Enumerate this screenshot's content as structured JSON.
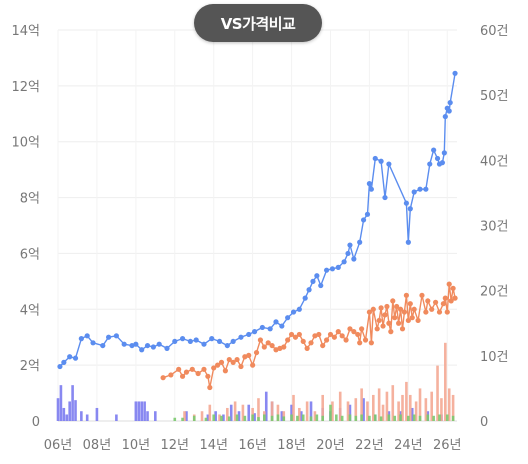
{
  "compare_button": {
    "label": "VS가격비교"
  },
  "chart_data": {
    "type": "line",
    "x_axis": {
      "ticks": [
        "06년",
        "08년",
        "10년",
        "12년",
        "14년",
        "16년",
        "18년",
        "20년",
        "22년",
        "24년",
        "26년"
      ],
      "range": [
        2006,
        2026.5
      ]
    },
    "y_left": {
      "ticks": [
        "0",
        "2억",
        "4억",
        "6억",
        "8억",
        "10억",
        "12억",
        "14억"
      ],
      "range": [
        0,
        14
      ]
    },
    "y_right": {
      "ticks": [
        "0",
        "10건",
        "20건",
        "30건",
        "40건",
        "50건",
        "60건"
      ],
      "range": [
        0,
        60
      ]
    },
    "grid": true,
    "colors": {
      "blue_line": "#5b8def",
      "orange_line": "#f08a5d",
      "blue_bars": "#7b7bef",
      "salmon_bars": "#f4a894",
      "green_bars": "#7bc96f"
    },
    "series": [
      {
        "kind": "line",
        "color": "#5b8def",
        "axis": "left",
        "points": [
          [
            2006.1,
            1.95
          ],
          [
            2006.3,
            2.1
          ],
          [
            2006.6,
            2.3
          ],
          [
            2006.9,
            2.25
          ],
          [
            2007.2,
            2.95
          ],
          [
            2007.5,
            3.05
          ],
          [
            2007.8,
            2.8
          ],
          [
            2008.3,
            2.7
          ],
          [
            2008.6,
            3.0
          ],
          [
            2009.0,
            3.05
          ],
          [
            2009.4,
            2.75
          ],
          [
            2009.8,
            2.7
          ],
          [
            2010.0,
            2.75
          ],
          [
            2010.3,
            2.55
          ],
          [
            2010.6,
            2.7
          ],
          [
            2010.9,
            2.65
          ],
          [
            2011.2,
            2.75
          ],
          [
            2011.6,
            2.6
          ],
          [
            2012.0,
            2.85
          ],
          [
            2012.4,
            2.95
          ],
          [
            2012.8,
            2.85
          ],
          [
            2013.1,
            2.9
          ],
          [
            2013.5,
            2.75
          ],
          [
            2013.9,
            2.95
          ],
          [
            2014.3,
            2.85
          ],
          [
            2014.7,
            2.7
          ],
          [
            2015.0,
            2.85
          ],
          [
            2015.4,
            3.0
          ],
          [
            2015.8,
            3.1
          ],
          [
            2016.1,
            3.2
          ],
          [
            2016.5,
            3.35
          ],
          [
            2016.9,
            3.3
          ],
          [
            2017.2,
            3.55
          ],
          [
            2017.5,
            3.4
          ],
          [
            2017.8,
            3.7
          ],
          [
            2018.1,
            3.9
          ],
          [
            2018.4,
            4.0
          ],
          [
            2018.7,
            4.4
          ],
          [
            2018.9,
            4.7
          ],
          [
            2019.1,
            5.0
          ],
          [
            2019.3,
            5.2
          ],
          [
            2019.5,
            4.85
          ],
          [
            2019.8,
            5.4
          ],
          [
            2020.1,
            5.45
          ],
          [
            2020.4,
            5.5
          ],
          [
            2020.7,
            5.7
          ],
          [
            2020.9,
            6.0
          ],
          [
            2021.0,
            6.3
          ],
          [
            2021.2,
            5.8
          ],
          [
            2021.5,
            6.4
          ],
          [
            2021.7,
            7.2
          ],
          [
            2021.9,
            7.4
          ],
          [
            2022.0,
            8.5
          ],
          [
            2022.1,
            8.3
          ],
          [
            2022.3,
            9.4
          ],
          [
            2022.6,
            9.3
          ],
          [
            2022.8,
            8.0
          ],
          [
            2023.0,
            9.2
          ],
          [
            2023.9,
            7.8
          ],
          [
            2024.0,
            6.4
          ],
          [
            2024.1,
            7.6
          ],
          [
            2024.3,
            8.2
          ],
          [
            2024.6,
            8.3
          ],
          [
            2024.9,
            8.3
          ],
          [
            2025.1,
            9.2
          ],
          [
            2025.3,
            9.7
          ],
          [
            2025.5,
            9.4
          ],
          [
            2025.6,
            9.2
          ],
          [
            2025.75,
            9.25
          ],
          [
            2025.85,
            9.6
          ],
          [
            2025.9,
            10.9
          ],
          [
            2026.0,
            11.2
          ],
          [
            2026.1,
            11.1
          ],
          [
            2026.15,
            11.4
          ],
          [
            2026.4,
            12.45
          ]
        ]
      },
      {
        "kind": "line",
        "color": "#f08a5d",
        "axis": "left",
        "points": [
          [
            2011.4,
            1.55
          ],
          [
            2011.8,
            1.65
          ],
          [
            2012.2,
            1.85
          ],
          [
            2012.4,
            1.6
          ],
          [
            2012.6,
            1.75
          ],
          [
            2012.9,
            1.85
          ],
          [
            2013.2,
            1.7
          ],
          [
            2013.5,
            1.85
          ],
          [
            2013.7,
            1.6
          ],
          [
            2013.8,
            1.2
          ],
          [
            2014.0,
            1.9
          ],
          [
            2014.2,
            2.0
          ],
          [
            2014.4,
            2.1
          ],
          [
            2014.6,
            1.8
          ],
          [
            2014.8,
            2.2
          ],
          [
            2015.0,
            2.1
          ],
          [
            2015.2,
            2.2
          ],
          [
            2015.4,
            1.95
          ],
          [
            2015.6,
            2.3
          ],
          [
            2015.8,
            2.35
          ],
          [
            2016.0,
            2.0
          ],
          [
            2016.2,
            2.45
          ],
          [
            2016.4,
            2.9
          ],
          [
            2016.6,
            2.65
          ],
          [
            2016.8,
            2.8
          ],
          [
            2017.0,
            2.7
          ],
          [
            2017.2,
            2.55
          ],
          [
            2017.4,
            2.6
          ],
          [
            2017.6,
            2.65
          ],
          [
            2017.8,
            2.9
          ],
          [
            2018.0,
            3.1
          ],
          [
            2018.2,
            3.0
          ],
          [
            2018.4,
            3.1
          ],
          [
            2018.6,
            2.85
          ],
          [
            2018.8,
            2.6
          ],
          [
            2019.0,
            2.8
          ],
          [
            2019.2,
            3.05
          ],
          [
            2019.4,
            3.1
          ],
          [
            2019.6,
            2.7
          ],
          [
            2019.8,
            2.9
          ],
          [
            2020.0,
            3.1
          ],
          [
            2020.2,
            3.0
          ],
          [
            2020.4,
            3.2
          ],
          [
            2020.6,
            3.05
          ],
          [
            2020.8,
            2.9
          ],
          [
            2021.0,
            3.3
          ],
          [
            2021.2,
            3.2
          ],
          [
            2021.4,
            3.1
          ],
          [
            2021.5,
            2.8
          ],
          [
            2021.6,
            3.3
          ],
          [
            2021.8,
            2.9
          ],
          [
            2022.0,
            3.9
          ],
          [
            2022.1,
            2.8
          ],
          [
            2022.2,
            4.0
          ],
          [
            2022.4,
            3.3
          ],
          [
            2022.5,
            3.6
          ],
          [
            2022.6,
            4.05
          ],
          [
            2022.7,
            3.4
          ],
          [
            2022.8,
            3.8
          ],
          [
            2022.9,
            4.1
          ],
          [
            2023.0,
            3.5
          ],
          [
            2023.1,
            3.2
          ],
          [
            2023.2,
            4.3
          ],
          [
            2023.3,
            3.7
          ],
          [
            2023.4,
            4.1
          ],
          [
            2023.5,
            3.5
          ],
          [
            2023.6,
            4.0
          ],
          [
            2023.7,
            3.3
          ],
          [
            2023.8,
            3.9
          ],
          [
            2023.9,
            4.5
          ],
          [
            2024.0,
            3.6
          ],
          [
            2024.1,
            4.2
          ],
          [
            2024.2,
            3.7
          ],
          [
            2024.3,
            4.0
          ],
          [
            2024.5,
            3.6
          ],
          [
            2024.7,
            4.5
          ],
          [
            2024.9,
            3.9
          ],
          [
            2025.0,
            4.3
          ],
          [
            2025.2,
            4.0
          ],
          [
            2025.4,
            4.25
          ],
          [
            2025.6,
            3.9
          ],
          [
            2025.8,
            4.2
          ],
          [
            2025.9,
            4.4
          ],
          [
            2026.0,
            3.9
          ],
          [
            2026.1,
            4.9
          ],
          [
            2026.2,
            4.3
          ],
          [
            2026.3,
            4.75
          ],
          [
            2026.4,
            4.4
          ]
        ]
      }
    ],
    "bar_series": [
      {
        "kind": "bars",
        "color": "#7b7bef",
        "axis": "right",
        "bars": [
          [
            2006.0,
            3.5
          ],
          [
            2006.15,
            5.5
          ],
          [
            2006.3,
            2.0
          ],
          [
            2006.45,
            1.0
          ],
          [
            2006.6,
            3.0
          ],
          [
            2006.75,
            5.5
          ],
          [
            2006.9,
            3.2
          ],
          [
            2007.2,
            1.5
          ],
          [
            2007.5,
            1.0
          ],
          [
            2008.0,
            2.0
          ],
          [
            2009.0,
            1.0
          ],
          [
            2010.0,
            3.0
          ],
          [
            2010.15,
            3.0
          ],
          [
            2010.3,
            3.0
          ],
          [
            2010.45,
            3.0
          ],
          [
            2010.6,
            1.5
          ],
          [
            2011.0,
            1.5
          ],
          [
            2012.6,
            1.5
          ],
          [
            2013.7,
            1.0
          ],
          [
            2014.1,
            1.5
          ],
          [
            2014.5,
            1.0
          ],
          [
            2014.9,
            2.5
          ],
          [
            2015.3,
            1.5
          ],
          [
            2015.8,
            2.5
          ],
          [
            2016.1,
            1.2
          ],
          [
            2016.7,
            4.5
          ],
          [
            2017.0,
            3.0
          ],
          [
            2017.5,
            1.5
          ],
          [
            2018.0,
            2.5
          ],
          [
            2018.5,
            1.5
          ],
          [
            2019.0,
            3.0
          ],
          [
            2019.6,
            2.0
          ],
          [
            2020.0,
            1.5
          ],
          [
            2020.5,
            2.0
          ],
          [
            2021.0,
            2.5
          ],
          [
            2021.7,
            3.5
          ],
          [
            2022.3,
            1.0
          ],
          [
            2023.0,
            1.5
          ],
          [
            2023.6,
            1.5
          ],
          [
            2024.2,
            2.0
          ],
          [
            2025.0,
            1.5
          ],
          [
            2025.7,
            1.0
          ]
        ]
      },
      {
        "kind": "bars",
        "color": "#f4a894",
        "axis": "right",
        "bars": [
          [
            2012.5,
            1.5
          ],
          [
            2013.0,
            1.0
          ],
          [
            2013.4,
            1.5
          ],
          [
            2013.8,
            2.5
          ],
          [
            2014.3,
            1.0
          ],
          [
            2014.7,
            2.0
          ],
          [
            2015.1,
            3.0
          ],
          [
            2015.5,
            2.5
          ],
          [
            2016.0,
            2.0
          ],
          [
            2016.3,
            3.5
          ],
          [
            2016.6,
            1.5
          ],
          [
            2017.0,
            3.0
          ],
          [
            2017.3,
            2.5
          ],
          [
            2017.6,
            1.5
          ],
          [
            2018.1,
            4.0
          ],
          [
            2018.4,
            2.0
          ],
          [
            2018.8,
            3.0
          ],
          [
            2019.2,
            1.5
          ],
          [
            2019.6,
            4.0
          ],
          [
            2020.1,
            3.0
          ],
          [
            2020.5,
            4.5
          ],
          [
            2020.9,
            3.0
          ],
          [
            2021.3,
            3.5
          ],
          [
            2021.6,
            5.0
          ],
          [
            2021.9,
            3.0
          ],
          [
            2022.2,
            4.0
          ],
          [
            2022.5,
            5.0
          ],
          [
            2022.7,
            2.5
          ],
          [
            2022.9,
            4.5
          ],
          [
            2023.2,
            5.5
          ],
          [
            2023.5,
            3.0
          ],
          [
            2023.7,
            4.0
          ],
          [
            2023.9,
            6.0
          ],
          [
            2024.1,
            4.0
          ],
          [
            2024.4,
            3.0
          ],
          [
            2024.6,
            5.0
          ],
          [
            2024.9,
            3.5
          ],
          [
            2025.2,
            4.5
          ],
          [
            2025.5,
            8.5
          ],
          [
            2025.7,
            3.5
          ],
          [
            2025.9,
            12.0
          ],
          [
            2026.1,
            5.0
          ],
          [
            2026.3,
            4.0
          ]
        ]
      },
      {
        "kind": "bars",
        "color": "#7bc96f",
        "axis": "right",
        "bars": [
          [
            2012.0,
            0.5
          ],
          [
            2012.4,
            0.5
          ],
          [
            2013.0,
            0.8
          ],
          [
            2013.6,
            0.5
          ],
          [
            2014.0,
            1.0
          ],
          [
            2014.4,
            0.8
          ],
          [
            2014.8,
            0.7
          ],
          [
            2015.2,
            1.0
          ],
          [
            2015.6,
            0.8
          ],
          [
            2016.0,
            1.0
          ],
          [
            2016.3,
            0.6
          ],
          [
            2016.6,
            1.0
          ],
          [
            2017.0,
            0.8
          ],
          [
            2017.3,
            1.0
          ],
          [
            2017.6,
            0.7
          ],
          [
            2018.0,
            1.0
          ],
          [
            2018.3,
            0.8
          ],
          [
            2018.6,
            1.0
          ],
          [
            2019.0,
            0.7
          ],
          [
            2019.3,
            1.0
          ],
          [
            2019.6,
            0.8
          ],
          [
            2020.0,
            2.5
          ],
          [
            2020.3,
            1.0
          ],
          [
            2020.6,
            0.8
          ],
          [
            2021.0,
            1.0
          ],
          [
            2021.3,
            0.8
          ],
          [
            2021.6,
            1.0
          ],
          [
            2022.0,
            0.8
          ],
          [
            2022.3,
            1.0
          ],
          [
            2022.6,
            0.7
          ],
          [
            2023.0,
            1.0
          ],
          [
            2023.3,
            0.8
          ],
          [
            2023.6,
            1.0
          ],
          [
            2024.0,
            0.8
          ],
          [
            2024.3,
            1.0
          ],
          [
            2024.6,
            0.8
          ],
          [
            2025.0,
            1.0
          ],
          [
            2025.3,
            0.8
          ],
          [
            2025.6,
            1.0
          ],
          [
            2026.0,
            1.0
          ],
          [
            2026.3,
            0.8
          ]
        ]
      }
    ]
  }
}
